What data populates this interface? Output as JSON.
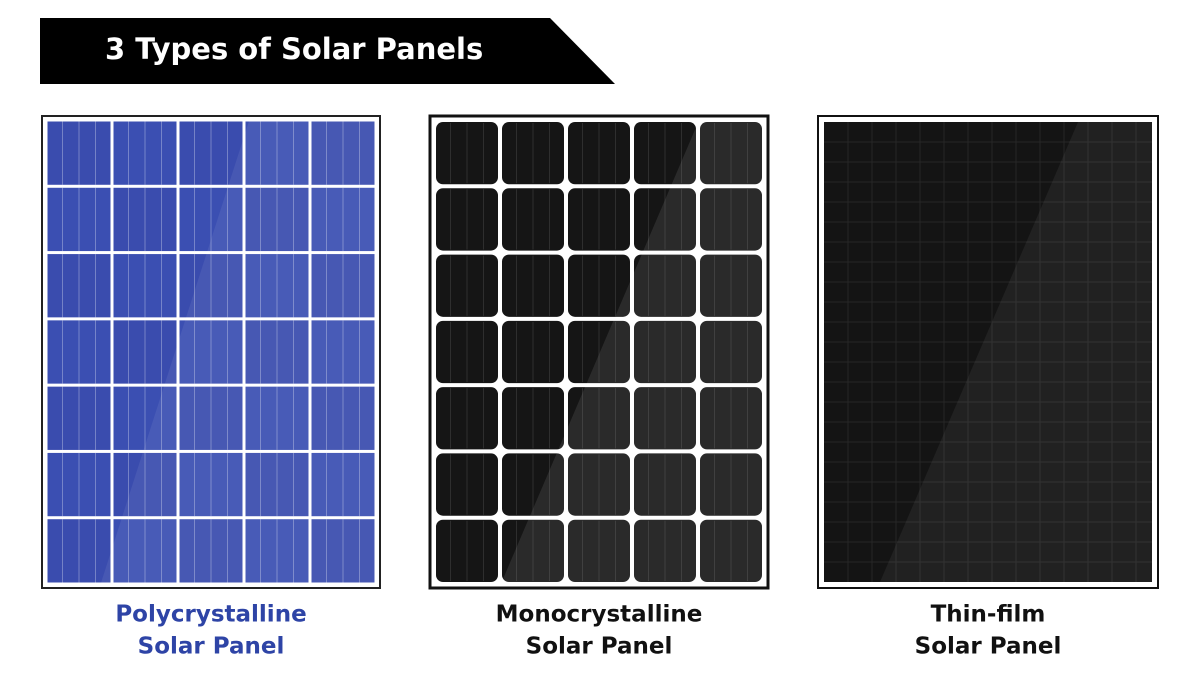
{
  "title": "3 Types of Solar Panels",
  "panels": [
    {
      "line1": "Polycrystalline",
      "line2": "Solar Panel"
    },
    {
      "line1": "Monocrystalline",
      "line2": "Solar Panel"
    },
    {
      "line1": "Thin-film",
      "line2": "Solar Panel"
    }
  ]
}
